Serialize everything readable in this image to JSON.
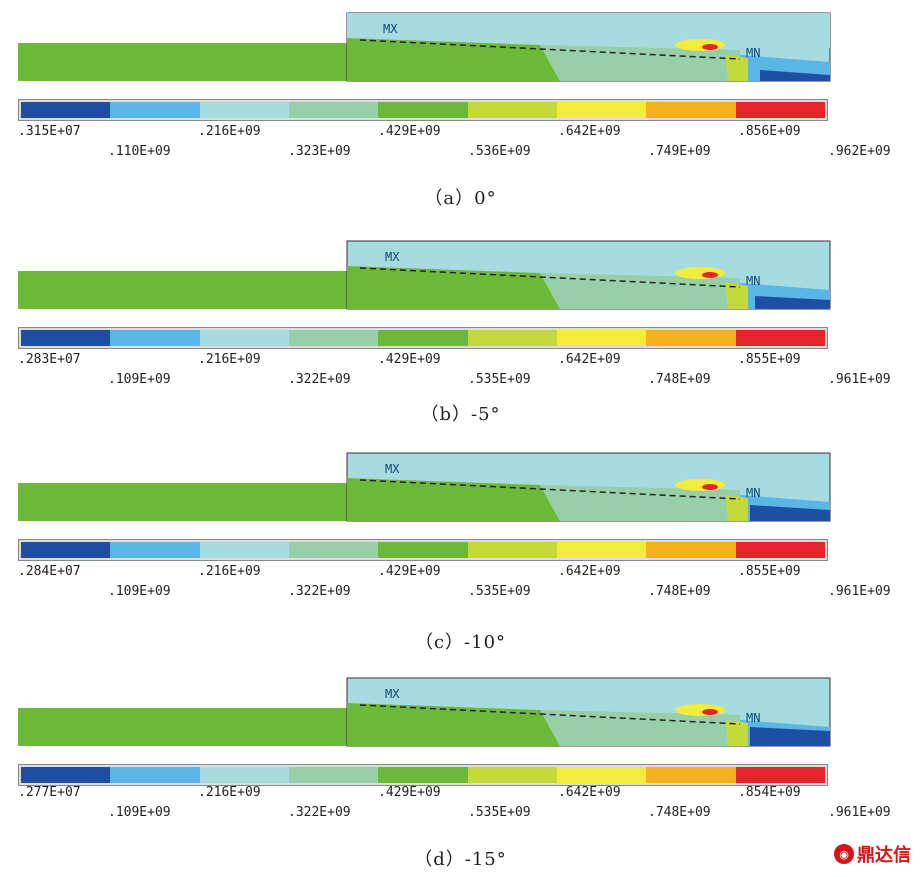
{
  "colors": {
    "scale": [
      "#1f4fa3",
      "#5bb6e8",
      "#a6dbe0",
      "#97cfa8",
      "#6cb93a",
      "#c3da3a",
      "#f4ec3a",
      "#f5b21c",
      "#e3242b"
    ]
  },
  "logo": {
    "text": "鼎达信"
  },
  "panels": [
    {
      "caption": "（a）0°",
      "mx": "MX",
      "mn": "MN",
      "ticks_top": [
        ".315E+07",
        ".216E+09",
        ".429E+09",
        ".642E+09",
        ".856E+09"
      ],
      "ticks_bottom": [
        ".110E+09",
        ".323E+09",
        ".536E+09",
        ".749E+09",
        ".962E+09"
      ]
    },
    {
      "caption": "（b）-5°",
      "mx": "MX",
      "mn": "MN",
      "ticks_top": [
        ".283E+07",
        ".216E+09",
        ".429E+09",
        ".642E+09",
        ".855E+09"
      ],
      "ticks_bottom": [
        ".109E+09",
        ".322E+09",
        ".535E+09",
        ".748E+09",
        ".961E+09"
      ]
    },
    {
      "caption": "（c）-10°",
      "mx": "MX",
      "mn": "MN",
      "ticks_top": [
        ".284E+07",
        ".216E+09",
        ".429E+09",
        ".642E+09",
        ".855E+09"
      ],
      "ticks_bottom": [
        ".109E+09",
        ".322E+09",
        ".535E+09",
        ".748E+09",
        ".961E+09"
      ]
    },
    {
      "caption": "（d）-15°",
      "mx": "MX",
      "mn": "MN",
      "ticks_top": [
        ".277E+07",
        ".216E+09",
        ".429E+09",
        ".642E+09",
        ".854E+09"
      ],
      "ticks_bottom": [
        ".109E+09",
        ".322E+09",
        ".535E+09",
        ".748E+09",
        ".961E+09"
      ]
    }
  ]
}
